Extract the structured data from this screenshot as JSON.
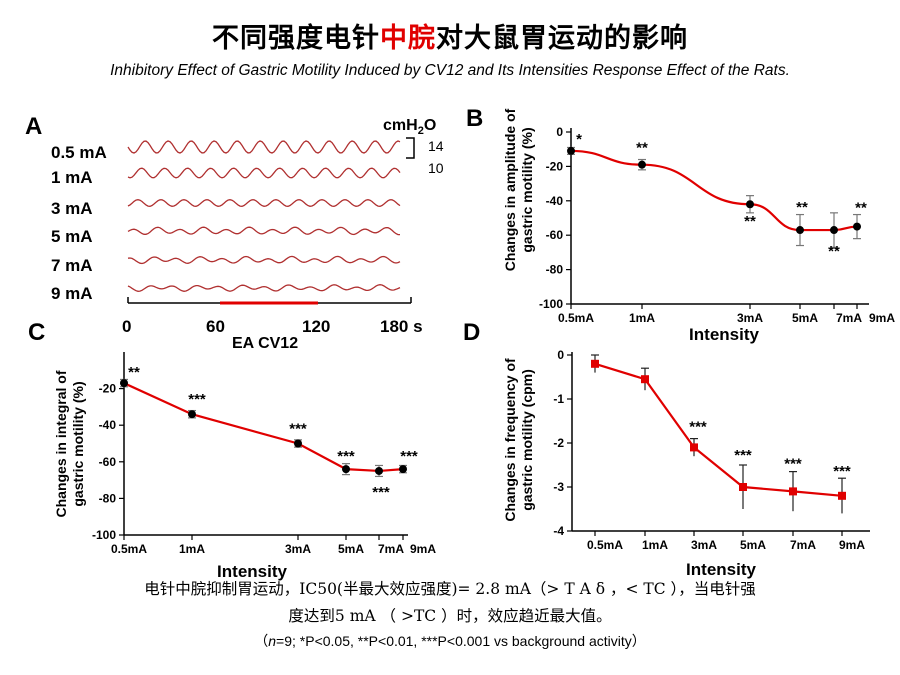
{
  "title": {
    "part1": "不同强度电针",
    "highlight": "中脘",
    "part2": "对大鼠胃运动的影响",
    "highlight_color": "#e00000"
  },
  "subtitle": "Inhibitory Effect of Gastric Motility Induced by CV12 and Its Intensities Response Effect of the Rats.",
  "panel_a": {
    "label": "A",
    "rows": [
      "0.5 mA",
      "1 mA",
      "3 mA",
      "5 mA",
      "7 mA",
      "9 mA"
    ],
    "row_amplitude_fraction": [
      1.0,
      0.8,
      0.55,
      0.45,
      0.4,
      0.35
    ],
    "scale_unit": "cmH₂O",
    "scale_value": "14",
    "scale_time": "10",
    "time_ticks": [
      "0",
      "60",
      "120",
      "180 s"
    ],
    "stim_label": "EA CV12",
    "stim_color": "#e00000",
    "trace_color": "#b03030"
  },
  "chart_data": [
    {
      "panel": "B",
      "type": "line",
      "x": [
        "0.5mA",
        "1mA",
        "3mA",
        "5mA",
        "7mA",
        "9mA"
      ],
      "values": [
        -11,
        -19,
        -42,
        -57,
        -57,
        -55
      ],
      "errors": [
        2,
        3,
        5,
        9,
        10,
        7
      ],
      "significance": [
        "*",
        "**",
        "**",
        "**",
        "**",
        "**"
      ],
      "ylabel": [
        "Changes in amplitude of",
        "gastric motility (%)"
      ],
      "xlabel": "Intensity",
      "yticks": [
        0,
        -20,
        -40,
        -60,
        -80,
        -100
      ],
      "ylim": [
        -100,
        0
      ],
      "line_color": "#e00000",
      "marker_color": "#000000"
    },
    {
      "panel": "C",
      "type": "line",
      "x": [
        "0.5mA",
        "1mA",
        "3mA",
        "5mA",
        "7mA",
        "9mA"
      ],
      "values": [
        -17,
        -34,
        -50,
        -64,
        -65,
        -64
      ],
      "errors": [
        2,
        2,
        2,
        3,
        3,
        2
      ],
      "significance": [
        "**",
        "***",
        "***",
        "***",
        "***",
        "***"
      ],
      "ylabel": [
        "Changes in integral of",
        "gastric motility (%)"
      ],
      "xlabel": "Intensity",
      "yticks": [
        -20,
        -40,
        -60,
        -80,
        -100
      ],
      "ylim": [
        -100,
        0
      ],
      "line_color": "#e00000",
      "marker_color": "#000000"
    },
    {
      "panel": "D",
      "type": "line",
      "x": [
        "0.5mA",
        "1mA",
        "3mA",
        "5mA",
        "7mA",
        "9mA"
      ],
      "values": [
        -0.2,
        -0.55,
        -2.1,
        -3.0,
        -3.1,
        -3.2
      ],
      "errors": [
        0.2,
        0.25,
        0.2,
        0.5,
        0.45,
        0.4
      ],
      "significance": [
        "",
        "",
        "***",
        "***",
        "***",
        "***"
      ],
      "ylabel": [
        "Changes in frequency of",
        "gastric motility (cpm)"
      ],
      "xlabel": "Intensity",
      "yticks": [
        0,
        -1,
        -2,
        -3,
        -4
      ],
      "ylim": [
        -4,
        0
      ],
      "line_color": "#e00000",
      "marker_color": "#e00000"
    }
  ],
  "footer": {
    "line1": "电针中脘抑制胃运动，IC50(半最大效应强度)= 2.8 mA（> T A δ ，< TC ），当电针强",
    "line2": "度达到5 mA （ >TC ）时，效应趋近最大值。",
    "note_n": "n",
    "note_rest": "=9; *P<0.05, **P<0.01, ***P<0.001 vs background activity）",
    "note_open": "（"
  }
}
